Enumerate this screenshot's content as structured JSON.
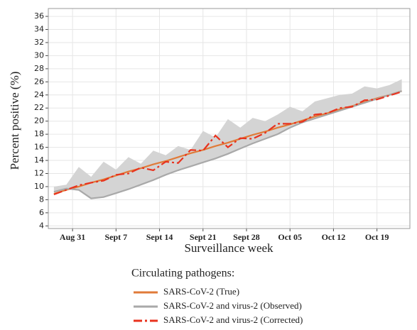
{
  "chart_data": {
    "type": "line",
    "y_label": "Percent positive (%)",
    "x_label": "Surveillance week",
    "legend_title": "Circulating pathogens:",
    "grid": true,
    "xlim": [
      -3.9,
      54.3
    ],
    "xticks": [
      {
        "value": 0,
        "label": "Aug 31"
      },
      {
        "value": 7,
        "label": "Sept 7"
      },
      {
        "value": 14,
        "label": "Sept 14"
      },
      {
        "value": 21,
        "label": "Sept 21"
      },
      {
        "value": 28,
        "label": "Sept 28"
      },
      {
        "value": 35,
        "label": "Oct 05"
      },
      {
        "value": 42,
        "label": "Oct 12"
      },
      {
        "value": 49,
        "label": "Oct 19"
      }
    ],
    "ylim": [
      3.6,
      37.2
    ],
    "yticks": [
      4,
      6,
      8,
      10,
      12,
      14,
      16,
      18,
      20,
      22,
      24,
      26,
      28,
      30,
      32,
      34,
      36
    ],
    "x": [
      -3,
      -1,
      1,
      3,
      5,
      7,
      9,
      11,
      13,
      15,
      17,
      19,
      21,
      23,
      25,
      27,
      29,
      31,
      33,
      35,
      37,
      39,
      41,
      43,
      45,
      47,
      49,
      51,
      53
    ],
    "band": {
      "color": "#d4d4d4",
      "upper": [
        10.0,
        10.3,
        13.0,
        11.5,
        13.8,
        12.6,
        14.5,
        13.5,
        15.5,
        14.8,
        16.2,
        15.6,
        18.5,
        17.5,
        20.3,
        19.0,
        20.5,
        20.0,
        21.0,
        22.2,
        21.5,
        23.0,
        23.5,
        24.0,
        24.2,
        25.3,
        25.0,
        25.5,
        26.4
      ],
      "lower": [
        9.2,
        9.7,
        9.5,
        8.2,
        8.4,
        9.0,
        9.6,
        10.3,
        11.0,
        11.8,
        12.5,
        13.1,
        13.7,
        14.3,
        15.0,
        15.8,
        16.6,
        17.3,
        18.0,
        19.0,
        19.8,
        20.4,
        21.0,
        21.6,
        22.2,
        22.8,
        23.4,
        24.0,
        24.6
      ]
    },
    "series": [
      {
        "name": "SARS-CoV-2 (True)",
        "color": "#e07b39",
        "dash": "none",
        "values": [
          8.9,
          9.5,
          10.0,
          10.6,
          11.1,
          11.7,
          12.3,
          12.8,
          13.4,
          13.9,
          14.5,
          15.1,
          15.6,
          16.2,
          16.7,
          17.3,
          17.9,
          18.4,
          19.0,
          19.5,
          20.1,
          20.7,
          21.2,
          21.8,
          22.3,
          22.9,
          23.5,
          24.0,
          24.6
        ]
      },
      {
        "name": "SARS-CoV-2 and virus-2 (Observed)",
        "color": "#a9a9a9",
        "dash": "none",
        "values": [
          9.2,
          9.7,
          9.5,
          8.2,
          8.4,
          9.0,
          9.6,
          10.3,
          11.0,
          11.8,
          12.5,
          13.1,
          13.7,
          14.3,
          15.0,
          15.8,
          16.6,
          17.3,
          18.0,
          19.0,
          19.8,
          20.4,
          21.0,
          21.6,
          22.2,
          22.8,
          23.4,
          24.0,
          24.6
        ]
      },
      {
        "name": "SARS-CoV-2 and virus-2 (Corrected)",
        "color": "#e8321e",
        "dash": "12 4 3 4",
        "values": [
          8.8,
          9.5,
          10.2,
          10.6,
          10.9,
          11.8,
          12.0,
          12.9,
          12.5,
          13.8,
          13.6,
          15.6,
          15.5,
          17.8,
          16.0,
          17.4,
          17.3,
          18.2,
          19.6,
          19.6,
          19.9,
          21.0,
          21.2,
          22.0,
          22.2,
          23.2,
          23.3,
          23.9,
          24.5
        ]
      }
    ]
  }
}
